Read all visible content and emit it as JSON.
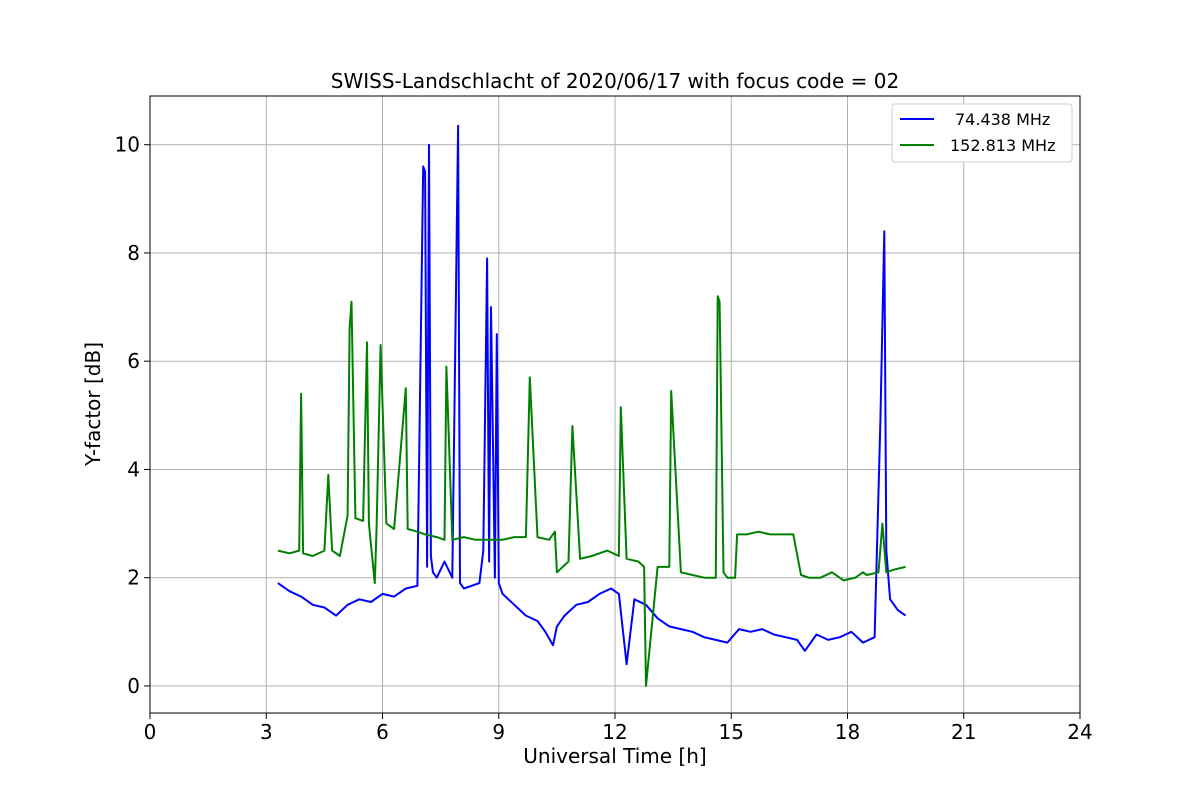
{
  "chart_data": {
    "type": "line",
    "title": "SWISS-Landschlacht of 2020/06/17 with focus code = 02",
    "xlabel": "Universal Time [h]",
    "ylabel": "Y-factor [dB]",
    "xlim": [
      0,
      24
    ],
    "ylim": [
      -0.5,
      10.9
    ],
    "xticks": [
      0,
      3,
      6,
      9,
      12,
      15,
      18,
      21,
      24
    ],
    "yticks": [
      0,
      2,
      4,
      6,
      8,
      10
    ],
    "xtick_labels": [
      "0",
      "3",
      "6",
      "9",
      "12",
      "15",
      "18",
      "21",
      "24"
    ],
    "ytick_labels": [
      "0",
      "2",
      "4",
      "6",
      "8",
      "10"
    ],
    "grid": true,
    "legend_position": "top-right",
    "series": [
      {
        "name": "74.438 MHz",
        "color": "#0000ff",
        "x": [
          3.3,
          3.6,
          3.9,
          4.2,
          4.5,
          4.8,
          5.1,
          5.4,
          5.7,
          6.0,
          6.3,
          6.6,
          6.9,
          7.05,
          7.1,
          7.15,
          7.2,
          7.25,
          7.3,
          7.4,
          7.6,
          7.8,
          7.95,
          8.0,
          8.1,
          8.3,
          8.5,
          8.6,
          8.7,
          8.75,
          8.8,
          8.9,
          8.95,
          9.0,
          9.1,
          9.4,
          9.7,
          10.0,
          10.2,
          10.4,
          10.5,
          10.7,
          11.0,
          11.3,
          11.6,
          11.9,
          12.1,
          12.3,
          12.5,
          12.8,
          13.1,
          13.4,
          13.7,
          14.0,
          14.3,
          14.6,
          14.9,
          15.2,
          15.5,
          15.8,
          16.1,
          16.4,
          16.7,
          16.9,
          17.2,
          17.5,
          17.8,
          18.1,
          18.4,
          18.7,
          18.85,
          18.95,
          19.0,
          19.1,
          19.3,
          19.5
        ],
        "y": [
          1.9,
          1.75,
          1.65,
          1.5,
          1.45,
          1.3,
          1.5,
          1.6,
          1.55,
          1.7,
          1.65,
          1.8,
          1.85,
          9.6,
          9.5,
          2.2,
          10.0,
          2.4,
          2.1,
          2.0,
          2.3,
          2.0,
          10.35,
          1.9,
          1.8,
          1.85,
          1.9,
          2.5,
          7.9,
          2.3,
          7.0,
          2.0,
          6.5,
          1.9,
          1.7,
          1.5,
          1.3,
          1.2,
          1.0,
          0.75,
          1.1,
          1.3,
          1.5,
          1.55,
          1.7,
          1.8,
          1.7,
          0.4,
          1.6,
          1.5,
          1.25,
          1.1,
          1.05,
          1.0,
          0.9,
          0.85,
          0.8,
          1.05,
          1.0,
          1.05,
          0.95,
          0.9,
          0.85,
          0.65,
          0.95,
          0.85,
          0.9,
          1.0,
          0.8,
          0.9,
          4.9,
          8.4,
          2.5,
          1.6,
          1.4,
          1.3
        ]
      },
      {
        "name": "152.813 MHz",
        "color": "#008000",
        "x": [
          3.3,
          3.6,
          3.85,
          3.9,
          3.95,
          4.2,
          4.5,
          4.6,
          4.7,
          4.9,
          5.1,
          5.15,
          5.2,
          5.3,
          5.5,
          5.6,
          5.65,
          5.8,
          5.85,
          5.95,
          6.1,
          6.2,
          6.3,
          6.6,
          6.65,
          6.9,
          7.1,
          7.4,
          7.6,
          7.65,
          7.8,
          8.1,
          8.4,
          8.6,
          8.8,
          9.1,
          9.4,
          9.7,
          9.8,
          10.0,
          10.3,
          10.45,
          10.5,
          10.8,
          10.9,
          11.1,
          11.4,
          11.8,
          12.1,
          12.15,
          12.3,
          12.6,
          12.75,
          12.8,
          13.1,
          13.4,
          13.45,
          13.7,
          14.0,
          14.3,
          14.6,
          14.65,
          14.7,
          14.8,
          14.9,
          15.1,
          15.15,
          15.4,
          15.7,
          16.0,
          16.3,
          16.6,
          16.8,
          17.0,
          17.3,
          17.6,
          17.9,
          18.2,
          18.4,
          18.5,
          18.8,
          18.9,
          19.0,
          19.2,
          19.5
        ],
        "y": [
          2.5,
          2.45,
          2.5,
          5.4,
          2.45,
          2.4,
          2.5,
          3.9,
          2.5,
          2.4,
          3.15,
          6.6,
          7.1,
          3.1,
          3.05,
          6.35,
          3.0,
          1.9,
          3.0,
          6.3,
          3.0,
          2.95,
          2.9,
          5.5,
          2.9,
          2.85,
          2.8,
          2.75,
          2.7,
          5.9,
          2.7,
          2.75,
          2.7,
          2.7,
          2.7,
          2.7,
          2.75,
          2.75,
          5.7,
          2.75,
          2.7,
          2.85,
          2.1,
          2.3,
          4.8,
          2.35,
          2.4,
          2.5,
          2.4,
          5.15,
          2.35,
          2.3,
          2.2,
          0.0,
          2.2,
          2.2,
          5.45,
          2.1,
          2.05,
          2.0,
          2.0,
          7.2,
          7.1,
          2.1,
          2.0,
          2.0,
          2.8,
          2.8,
          2.85,
          2.8,
          2.8,
          2.8,
          2.05,
          2.0,
          2.0,
          2.1,
          1.95,
          2.0,
          2.1,
          2.05,
          2.1,
          3.0,
          2.1,
          2.15,
          2.2
        ]
      }
    ]
  }
}
